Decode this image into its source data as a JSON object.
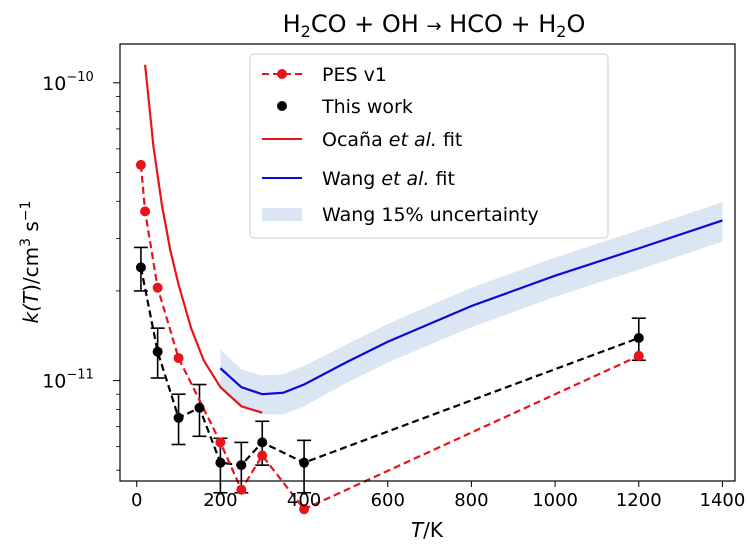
{
  "chart_data": {
    "type": "line",
    "title": {
      "p1": "H",
      "s1": "2",
      "p2": "CO + OH ",
      "arrow": "→",
      "p3": " HCO + H",
      "s2": "2",
      "p4": "O"
    },
    "xlabel": {
      "var": "T",
      "rest": "/K"
    },
    "ylabel": {
      "pre": "k(",
      "var": "T",
      "post": ")/cm",
      "sup1": "3",
      "mid": " s",
      "sup2": "−1"
    },
    "xlim": [
      -40,
      1430
    ],
    "ylim": [
      4.6e-12,
      1.35e-10
    ],
    "yscale": "log",
    "xticks": [
      0,
      200,
      400,
      600,
      800,
      1000,
      1200,
      1400
    ],
    "xtick_labels": [
      "0",
      "200",
      "400",
      "600",
      "800",
      "1000",
      "1200",
      "1400"
    ],
    "yticks": [
      {
        "value": 1e-11,
        "base": "10",
        "exp": "−11"
      },
      {
        "value": 1e-10,
        "base": "10",
        "exp": "−10"
      }
    ],
    "legend_position": "top-center",
    "series": [
      {
        "name": "PES v1",
        "style": "dashed-markers",
        "color": "#e8141b",
        "x": [
          10,
          20,
          50,
          100,
          200,
          250,
          300,
          400,
          1200
        ],
        "y": [
          5.3e-11,
          3.7e-11,
          2.05e-11,
          1.19e-11,
          6.2e-12,
          4.3e-12,
          5.6e-12,
          3.7e-12,
          1.21e-11
        ]
      },
      {
        "name": "This work",
        "style": "dashed-markers-errorbars",
        "color": "#000000",
        "x": [
          10,
          50,
          100,
          150,
          200,
          250,
          300,
          400,
          1200
        ],
        "y": [
          2.4e-11,
          1.25e-11,
          7.5e-12,
          8.1e-12,
          5.3e-12,
          5.2e-12,
          6.2e-12,
          5.3e-12,
          1.39e-11
        ],
        "yerr": [
          [
            2e-11,
            2.8e-11
          ],
          [
            1.02e-11,
            1.5e-11
          ],
          [
            6.1e-12,
            9e-12
          ],
          [
            6.5e-12,
            9.7e-12
          ],
          [
            4.2e-12,
            6.4e-12
          ],
          [
            4.2e-12,
            6.2e-12
          ],
          [
            5.2e-12,
            7.3e-12
          ],
          [
            4.2e-12,
            6.3e-12
          ],
          [
            1.17e-11,
            1.62e-11
          ]
        ]
      },
      {
        "name": "Ocaña et al. fit",
        "name_parts": {
          "a": "Ocaña ",
          "b": "et al.",
          "c": " fit"
        },
        "style": "line",
        "color": "#e8141b",
        "x": [
          20,
          40,
          60,
          80,
          100,
          130,
          160,
          200,
          250,
          300
        ],
        "y": [
          1.15e-10,
          6.1e-11,
          3.9e-11,
          2.75e-11,
          2.1e-11,
          1.5e-11,
          1.17e-11,
          9.5e-12,
          8.2e-12,
          7.8e-12
        ]
      },
      {
        "name": "Wang et al. fit",
        "name_parts": {
          "a": "Wang ",
          "b": "et al.",
          "c": " fit"
        },
        "style": "line",
        "color": "#0a0ad6",
        "x": [
          200,
          250,
          300,
          350,
          400,
          500,
          600,
          800,
          1000,
          1200,
          1400
        ],
        "y": [
          1.1e-11,
          9.5e-12,
          9e-12,
          9.1e-12,
          9.7e-12,
          1.15e-11,
          1.35e-11,
          1.78e-11,
          2.25e-11,
          2.78e-11,
          3.45e-11
        ]
      },
      {
        "name": "Wang 15% uncertainty",
        "style": "band",
        "color": "#dae6f3",
        "x": [
          200,
          250,
          300,
          350,
          400,
          500,
          600,
          800,
          1000,
          1200,
          1400
        ],
        "lower": [
          9.4e-12,
          8.1e-12,
          7.7e-12,
          7.7e-12,
          8.2e-12,
          9.8e-12,
          1.15e-11,
          1.51e-11,
          1.91e-11,
          2.36e-11,
          2.93e-11
        ],
        "upper": [
          1.27e-11,
          1.09e-11,
          1.04e-11,
          1.05e-11,
          1.12e-11,
          1.32e-11,
          1.55e-11,
          2.05e-11,
          2.59e-11,
          3.2e-11,
          3.97e-11
        ]
      }
    ]
  }
}
